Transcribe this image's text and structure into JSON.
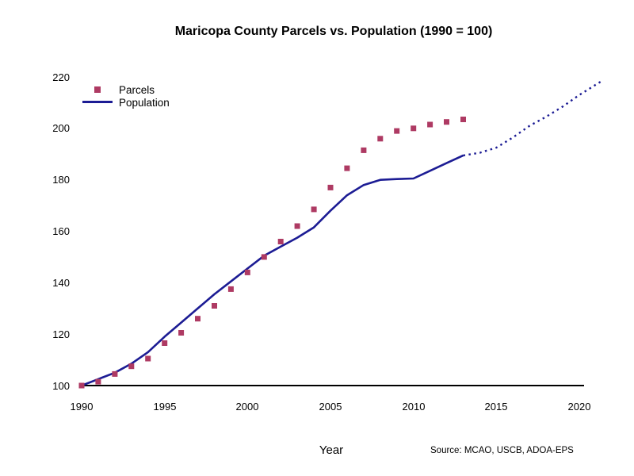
{
  "chart_data": {
    "type": "scatter+line",
    "title": "Maricopa County Parcels vs. Population (1990 = 100)",
    "xlabel": "Year",
    "ylabel": "",
    "source": "Source: MCAO, USCB, ADOA-EPS",
    "xticks": [
      1990,
      1995,
      2000,
      2005,
      2010,
      2015,
      2020
    ],
    "yticks": [
      100,
      120,
      140,
      160,
      180,
      200,
      220
    ],
    "xlim": [
      1989.9,
      2021.6
    ],
    "ylim": [
      100,
      220
    ],
    "grid": false,
    "legend_position": "upper-left-inside",
    "axis_color": "#000000",
    "series": [
      {
        "name": "Parcels",
        "type": "scatter",
        "marker": "square",
        "color": "#AE3A63",
        "x": [
          1990,
          1991,
          1992,
          1993,
          1994,
          1995,
          1996,
          1997,
          1998,
          1999,
          2000,
          2001,
          2002,
          2003,
          2004,
          2005,
          2006,
          2007,
          2008,
          2009,
          2010,
          2011,
          2012,
          2013
        ],
        "y": [
          100,
          101.5,
          104.5,
          107.5,
          110.5,
          116.5,
          120.5,
          126,
          131,
          137.5,
          144,
          150,
          156,
          162,
          168.5,
          177,
          184.5,
          191.5,
          196,
          199,
          200,
          201.5,
          202.5,
          203.5
        ]
      },
      {
        "name": "Population",
        "type": "line",
        "style": "solid",
        "color": "#1C1C94",
        "x": [
          1990,
          1991,
          1992,
          1993,
          1994,
          1995,
          1996,
          1997,
          1998,
          1999,
          2000,
          2001,
          2002,
          2003,
          2004,
          2005,
          2006,
          2007,
          2008,
          2009,
          2010,
          2011,
          2012,
          2013
        ],
        "y": [
          100,
          102.5,
          105,
          108.5,
          113,
          119,
          124.5,
          130,
          135.5,
          140.5,
          145.5,
          150.5,
          154,
          157.5,
          161.5,
          168,
          174,
          178,
          180,
          180.3,
          180.5,
          183.5,
          186.5,
          189.5
        ]
      },
      {
        "name": "Population",
        "type": "line",
        "style": "dashed",
        "segment": "projection",
        "color": "#1C1C94",
        "x": [
          2013,
          2014,
          2015,
          2016,
          2017,
          2018,
          2019,
          2020,
          2021,
          2021.4
        ],
        "y": [
          189.5,
          190.5,
          192.5,
          196.5,
          201,
          204.5,
          208.5,
          213,
          217,
          218.6
        ]
      }
    ]
  },
  "legend": {
    "parcels_label": "Parcels",
    "population_label": "Population"
  }
}
